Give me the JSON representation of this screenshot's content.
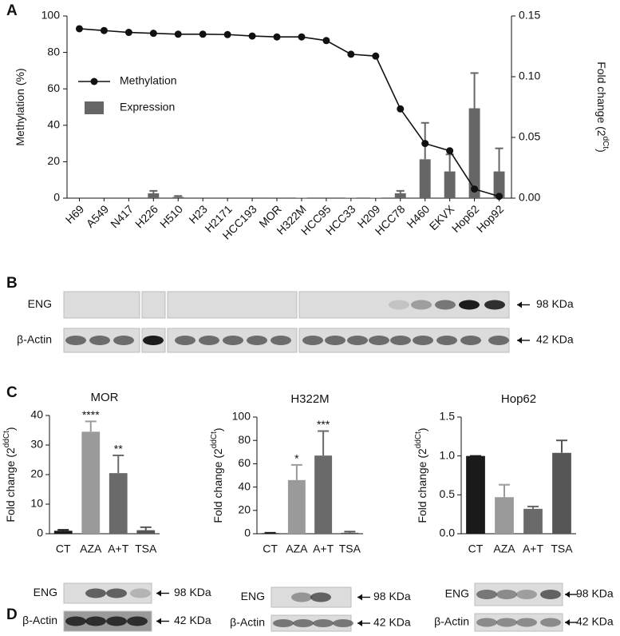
{
  "panel_labels": [
    "A",
    "B",
    "C",
    "D"
  ],
  "chart_data": [
    {
      "type": "combo",
      "categories": [
        "H69",
        "A549",
        "N417",
        "H226",
        "H510",
        "H23",
        "H2171",
        "HCC193",
        "MOR",
        "H322M",
        "HCC95",
        "HCC33",
        "H209",
        "HCC78",
        "H460",
        "EKVX",
        "Hop62",
        "Hop92"
      ],
      "ylabel": [
        "Methylation (%)"
      ],
      "y2label": [
        "Fold change (2",
        "dCt",
        ")"
      ],
      "ylim": [
        0,
        100
      ],
      "yticks": [
        0,
        20,
        40,
        60,
        80,
        100
      ],
      "y2lim": [
        0,
        0.15
      ],
      "y2ticks": [
        {
          "value": 0,
          "label": "0.00"
        },
        {
          "value": 0.05,
          "label": "0.05"
        },
        {
          "value": 0.1,
          "label": "0.10"
        },
        {
          "value": 0.15,
          "label": "0.15"
        }
      ],
      "legend": "upper left",
      "series": [
        {
          "name": "Methylation",
          "type": "line",
          "color": "#111111",
          "values": [
            93,
            92,
            91,
            90.5,
            90,
            90,
            89.8,
            89,
            88.5,
            88.5,
            86.5,
            79,
            78,
            49,
            30,
            26,
            5,
            1
          ]
        },
        {
          "name": "Expression",
          "type": "bar",
          "axis": "y2",
          "color": "#666666",
          "values": [
            0,
            0,
            0,
            0.004,
            0.001,
            0,
            0,
            0,
            0.0005,
            0.0003,
            0,
            0.0003,
            0.0003,
            0.004,
            0.032,
            0.022,
            0.074,
            0.022
          ],
          "errors": [
            null,
            null,
            null,
            0.002,
            0.0008,
            null,
            null,
            null,
            null,
            null,
            null,
            null,
            null,
            0.002,
            0.03,
            0.014,
            0.029,
            0.019
          ]
        }
      ]
    },
    {
      "type": "bar",
      "title": "MOR",
      "categories": [
        "CT",
        "AZA",
        "A+T",
        "TSA"
      ],
      "values": [
        1,
        34.5,
        20.5,
        1.2
      ],
      "errors": [
        0.3,
        3.5,
        6,
        1
      ],
      "colors": [
        "#1a1a1a",
        "#9a9a9a",
        "#6a6a6a",
        "#555555"
      ],
      "annotations": [
        null,
        "****",
        "**",
        null
      ],
      "ylabel": [
        "Fold change (2",
        "ddCt",
        ")"
      ],
      "ylim": [
        0,
        40
      ],
      "yticks": [
        0,
        10,
        20,
        30,
        40
      ]
    },
    {
      "type": "bar",
      "title": "H322M",
      "categories": [
        "CT",
        "AZA",
        "A+T",
        "TSA"
      ],
      "values": [
        0.5,
        46,
        67,
        0.8
      ],
      "errors": [
        0.3,
        13,
        21,
        1
      ],
      "colors": [
        "#1a1a1a",
        "#9a9a9a",
        "#6a6a6a",
        "#555555"
      ],
      "annotations": [
        null,
        "*",
        "***",
        null
      ],
      "ylabel": [
        "Fold change (2",
        "ddCt",
        ")"
      ],
      "ylim": [
        0,
        100
      ],
      "yticks": [
        0,
        20,
        40,
        60,
        80,
        100
      ]
    },
    {
      "type": "bar",
      "title": "Hop62",
      "categories": [
        "CT",
        "AZA",
        "A+T",
        "TSA"
      ],
      "values": [
        1,
        0.47,
        0.32,
        1.04
      ],
      "errors": [
        0,
        0.16,
        0.03,
        0.16
      ],
      "colors": [
        "#1a1a1a",
        "#9a9a9a",
        "#6a6a6a",
        "#555555"
      ],
      "ylabel": [
        "Fold change (2",
        "ddCt",
        ")"
      ],
      "ylim": [
        0,
        1.5
      ],
      "yticks": [
        {
          "value": 0,
          "label": "0.0"
        },
        0.5,
        {
          "value": 1,
          "label": "1.0"
        },
        1.5
      ]
    }
  ],
  "blots": [
    {
      "rows": [
        {
          "label": "ENG",
          "size": "98 KDa"
        },
        {
          "label": "β-Actin",
          "size": "42 KDa"
        }
      ]
    },
    {
      "rows": [
        {
          "label": "ENG",
          "size": "98 KDa"
        },
        {
          "label": "β-Actin",
          "size": "42 KDa"
        }
      ]
    },
    {
      "rows": [
        {
          "label": "ENG",
          "size": "98 KDa"
        },
        {
          "label": "β-Actin",
          "size": "42 KDa"
        }
      ]
    },
    {
      "rows": [
        {
          "label": "ENG",
          "size": "98 KDa"
        },
        {
          "label": "β-Actin",
          "size": "42 KDa"
        }
      ]
    }
  ]
}
